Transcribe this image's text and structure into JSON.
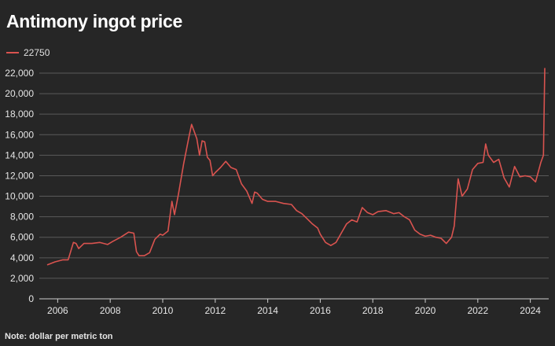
{
  "title": "Antimony ingot price",
  "note": "Note: dollar per metric ton",
  "colors": {
    "background": "#262626",
    "line": "#d9534f",
    "grid": "#5a5a5a",
    "axis": "#cfcfcf",
    "text": "#e6e6e6"
  },
  "chart_data": {
    "type": "line",
    "title": "Antimony ingot price",
    "xlabel": "",
    "ylabel": "",
    "xlim": [
      2005.3,
      2024.7
    ],
    "ylim": [
      0,
      22000
    ],
    "grid": true,
    "legend_position": "top-left",
    "yticks": [
      0,
      2000,
      4000,
      6000,
      8000,
      10000,
      12000,
      14000,
      16000,
      18000,
      20000,
      22000
    ],
    "ytick_labels": [
      "0",
      "2,000",
      "4,000",
      "6,000",
      "8,000",
      "10,000",
      "12,000",
      "14,000",
      "16,000",
      "18,000",
      "20,000",
      "22,000"
    ],
    "xticks": [
      2006,
      2008,
      2010,
      2012,
      2014,
      2016,
      2018,
      2020,
      2022,
      2024
    ],
    "xtick_labels": [
      "2006",
      "2008",
      "2010",
      "2012",
      "2014",
      "2016",
      "2018",
      "2020",
      "2022",
      "2024"
    ],
    "series": [
      {
        "name": "22750",
        "x": [
          2005.6,
          2005.9,
          2006.2,
          2006.4,
          2006.6,
          2006.7,
          2006.8,
          2007.0,
          2007.3,
          2007.6,
          2007.9,
          2008.1,
          2008.4,
          2008.7,
          2008.9,
          2009.0,
          2009.1,
          2009.3,
          2009.5,
          2009.7,
          2009.9,
          2010.0,
          2010.2,
          2010.35,
          2010.45,
          2010.6,
          2010.8,
          2011.0,
          2011.1,
          2011.2,
          2011.3,
          2011.4,
          2011.5,
          2011.6,
          2011.7,
          2011.8,
          2011.9,
          2012.0,
          2012.2,
          2012.4,
          2012.6,
          2012.8,
          2013.0,
          2013.2,
          2013.4,
          2013.5,
          2013.6,
          2013.8,
          2014.0,
          2014.3,
          2014.6,
          2014.9,
          2015.1,
          2015.3,
          2015.5,
          2015.7,
          2015.9,
          2016.0,
          2016.2,
          2016.4,
          2016.6,
          2016.8,
          2017.0,
          2017.2,
          2017.4,
          2017.6,
          2017.8,
          2018.0,
          2018.2,
          2018.5,
          2018.8,
          2019.0,
          2019.2,
          2019.4,
          2019.6,
          2019.8,
          2020.0,
          2020.2,
          2020.4,
          2020.6,
          2020.8,
          2021.0,
          2021.1,
          2021.25,
          2021.4,
          2021.6,
          2021.8,
          2022.0,
          2022.2,
          2022.3,
          2022.4,
          2022.6,
          2022.8,
          2023.0,
          2023.2,
          2023.4,
          2023.6,
          2023.8,
          2024.0,
          2024.2,
          2024.4,
          2024.5,
          2024.55
        ],
        "values": [
          3300,
          3600,
          3800,
          3800,
          5500,
          5400,
          4900,
          5400,
          5400,
          5500,
          5300,
          5600,
          6000,
          6500,
          6400,
          4600,
          4200,
          4200,
          4500,
          5800,
          6300,
          6200,
          6600,
          9500,
          8200,
          10200,
          13200,
          15800,
          17000,
          16300,
          15600,
          14000,
          15400,
          15300,
          13800,
          13500,
          12000,
          12300,
          12800,
          13400,
          12800,
          12600,
          11200,
          10500,
          9300,
          10400,
          10300,
          9700,
          9500,
          9500,
          9300,
          9200,
          8600,
          8300,
          7800,
          7300,
          6900,
          6300,
          5500,
          5200,
          5500,
          6400,
          7300,
          7700,
          7500,
          8900,
          8400,
          8200,
          8500,
          8600,
          8300,
          8400,
          8000,
          7700,
          6700,
          6300,
          6100,
          6200,
          6000,
          5900,
          5400,
          6000,
          7100,
          11700,
          10000,
          10700,
          12600,
          13200,
          13300,
          15100,
          14000,
          13300,
          13600,
          11800,
          10900,
          12900,
          11900,
          12000,
          11900,
          11400,
          13300,
          14000,
          22500
        ]
      }
    ]
  }
}
